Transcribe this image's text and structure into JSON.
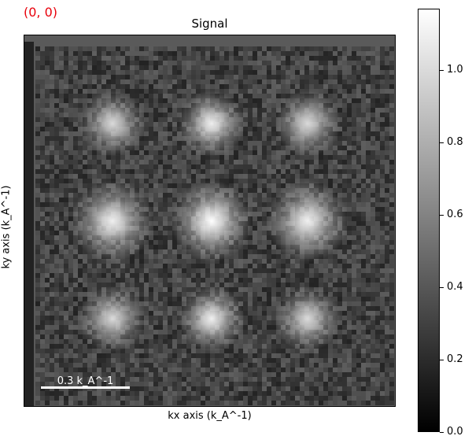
{
  "coord_label": "(0, 0)",
  "chart_data": {
    "type": "heatmap",
    "title": "Signal",
    "xlabel": "kx axis (k_A^-1)",
    "ylabel": "ky axis (k_A^-1)",
    "colormap": "gray",
    "clim": [
      0.0,
      1.17
    ],
    "colorbar_ticks": [
      "0.0",
      "0.2",
      "0.4",
      "0.6",
      "0.8",
      "1.0"
    ],
    "colorbar_tick_values": [
      0.0,
      0.2,
      0.4,
      0.6,
      0.8,
      1.0
    ],
    "scalebar_label": "0.3 k_A^-1",
    "background_level": 0.3,
    "spots": [
      {
        "row": 0,
        "col": 0,
        "peak": 1.0
      },
      {
        "row": 0,
        "col": 1,
        "peak": 1.1
      },
      {
        "row": 0,
        "col": 2,
        "peak": 1.0
      },
      {
        "row": 1,
        "col": 0,
        "peak": 1.1
      },
      {
        "row": 1,
        "col": 1,
        "peak": 1.17
      },
      {
        "row": 1,
        "col": 2,
        "peak": 1.1
      },
      {
        "row": 2,
        "col": 0,
        "peak": 1.0
      },
      {
        "row": 2,
        "col": 1,
        "peak": 1.1
      },
      {
        "row": 2,
        "col": 2,
        "peak": 1.0
      }
    ]
  }
}
